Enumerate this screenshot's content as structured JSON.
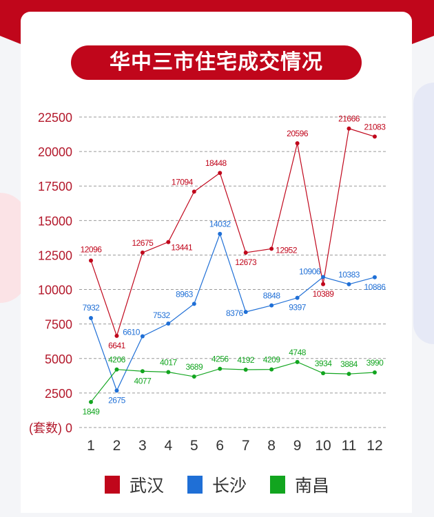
{
  "title": "华中三市住宅成交情况",
  "chart_data": {
    "type": "line",
    "title": "华中三市住宅成交情况",
    "x": [
      "1",
      "2",
      "3",
      "4",
      "5",
      "6",
      "7",
      "8",
      "9",
      "10",
      "11",
      "12"
    ],
    "y_ticks": [
      "22500",
      "20000",
      "17500",
      "15000",
      "12500",
      "10000",
      "7500",
      "5000",
      "2500",
      "0"
    ],
    "y_unit_label": "(套数)",
    "ylim": [
      0,
      22500
    ],
    "grid": true,
    "legend_position": "bottom",
    "series": [
      {
        "name": "武汉",
        "color": "#c0061b",
        "values": [
          12096,
          6641,
          12675,
          13441,
          17094,
          18448,
          12673,
          12952,
          20596,
          10389,
          21666,
          21083
        ]
      },
      {
        "name": "长沙",
        "color": "#1f6fd6",
        "values": [
          7932,
          2675,
          6610,
          7532,
          8963,
          14032,
          8376,
          8848,
          9397,
          10906,
          10383,
          10886
        ]
      },
      {
        "name": "南昌",
        "color": "#12a51f",
        "values": [
          1849,
          4206,
          4077,
          4017,
          3689,
          4256,
          4192,
          4209,
          4748,
          3934,
          3884,
          3990
        ]
      }
    ]
  }
}
